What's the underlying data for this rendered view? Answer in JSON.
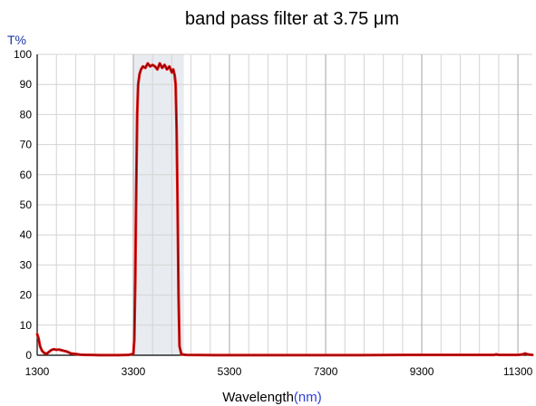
{
  "chart_data": {
    "type": "line",
    "title": "band pass filter at 3.75 μm",
    "ylabel": "T%",
    "xlabel_main": "Wavelength",
    "xlabel_unit": "(nm)",
    "xlim": [
      1300,
      11600
    ],
    "ylim": [
      0,
      100
    ],
    "xticks": [
      1300,
      3300,
      5300,
      7300,
      9300,
      11300
    ],
    "xtick_labels": [
      "1300",
      "3300",
      "5300",
      "7300",
      "9300",
      "11300"
    ],
    "yticks": [
      0,
      10,
      20,
      30,
      40,
      50,
      60,
      70,
      80,
      90,
      100
    ],
    "ytick_labels": [
      "0",
      "10",
      "20",
      "30",
      "40",
      "50",
      "60",
      "70",
      "80",
      "90",
      "100"
    ],
    "grid": true,
    "colors": {
      "title": "#000000",
      "ylabel": "#1a36a8",
      "xlabel": "#000000",
      "xlabel_unit": "#2f3fd9",
      "series": "#e01818",
      "series_core": "#7a0000",
      "band_shade": "#d9dde4",
      "grid": "#d4d4d4",
      "axis": "#000000",
      "tick_label": "#000000"
    },
    "band_shade": [
      3300,
      4350
    ],
    "series": [
      {
        "x": [
          1300,
          1330,
          1360,
          1400,
          1450,
          1500,
          1550,
          1600,
          1650,
          1700,
          1750,
          1800,
          1850,
          1900,
          1950,
          2000,
          2100,
          2200,
          2300,
          2400,
          2600,
          2800,
          3000,
          3200,
          3300,
          3320,
          3340,
          3360,
          3380,
          3400,
          3430,
          3460,
          3500,
          3550,
          3600,
          3650,
          3700,
          3750,
          3800,
          3850,
          3900,
          3950,
          4000,
          4050,
          4100,
          4130,
          4160,
          4180,
          4200,
          4220,
          4240,
          4260,
          4300,
          4400,
          5000,
          6000,
          7000,
          8000,
          9000,
          10000,
          10800,
          10850,
          10900,
          11000,
          11300,
          11400,
          11450,
          11500,
          11600
        ],
        "y": [
          7,
          5.5,
          3,
          1.5,
          0.7,
          0.5,
          1.2,
          1.8,
          2.0,
          1.8,
          1.9,
          1.7,
          1.5,
          1.3,
          1.0,
          0.6,
          0.4,
          0.2,
          0.1,
          0.1,
          0.05,
          0.05,
          0.05,
          0.1,
          0.5,
          5,
          25,
          55,
          80,
          90,
          93.5,
          95,
          96,
          95.5,
          97,
          96,
          96.5,
          96,
          95,
          97,
          95.5,
          96.5,
          95,
          96,
          94,
          95,
          93,
          90,
          75,
          50,
          20,
          3,
          0.3,
          0.1,
          0.05,
          0.05,
          0.05,
          0.05,
          0.1,
          0.1,
          0.1,
          0.3,
          0.1,
          0.1,
          0.1,
          0.3,
          0.6,
          0.3,
          0.1
        ]
      }
    ]
  }
}
